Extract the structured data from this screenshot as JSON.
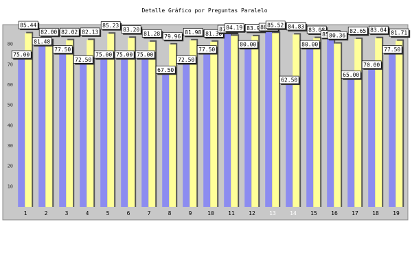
{
  "colors": {
    "panel_background": "#c8c8c8",
    "series_a": "#8c8cf0",
    "series_b": "#ffff99",
    "shadow": "#555555",
    "label_box": "#ffffff"
  },
  "chart_data": {
    "type": "bar",
    "title": "Detalle Gráfico por Preguntas Paralelo",
    "xlabel": "",
    "ylabel": "",
    "ylim": [
      0,
      90
    ],
    "yticks": [
      10,
      20,
      30,
      40,
      50,
      60,
      70,
      80
    ],
    "grid": false,
    "legend": "none",
    "categories": [
      "1",
      "2",
      "3",
      "4",
      "5",
      "6",
      "7",
      "8",
      "9",
      "10",
      "11",
      "12",
      "13",
      "14",
      "15",
      "16",
      "17",
      "18",
      "19"
    ],
    "series": [
      {
        "values": [
          75.0,
          81.48,
          77.5,
          72.5,
          75.0,
          75.0,
          75.0,
          67.5,
          72.5,
          77.5,
          87.5,
          80.0,
          88.5,
          62.5,
          80.0,
          85.0,
          65.0,
          70.0,
          77.5
        ]
      },
      {
        "values": [
          85.44,
          82.0,
          82.02,
          82.13,
          85.23,
          83.2,
          81.28,
          79.96,
          81.98,
          81.3,
          84.19,
          83.99,
          85.52,
          84.83,
          83.08,
          80.36,
          82.65,
          83.04,
          81.71
        ]
      }
    ],
    "label_colors": {
      "light_categories": [
        "13",
        "14"
      ]
    }
  }
}
